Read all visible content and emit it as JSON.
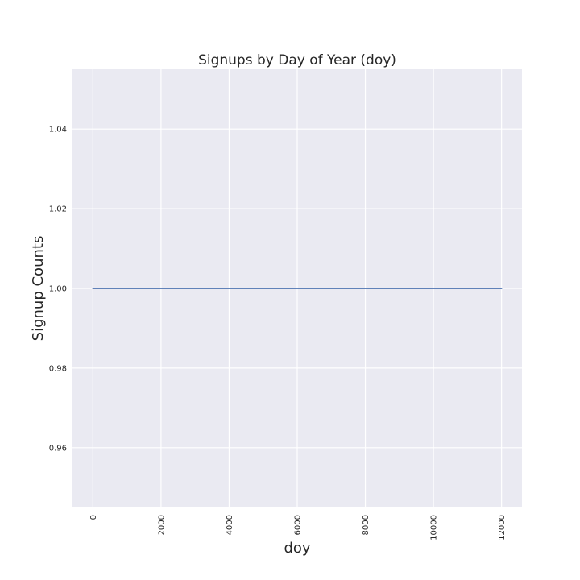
{
  "chart_data": {
    "type": "line",
    "title": "Signups by Day of Year (doy)",
    "xlabel": "doy",
    "ylabel": "Signup Counts",
    "xlim": [
      -600,
      12600
    ],
    "ylim": [
      0.945,
      1.055
    ],
    "xticks": [
      0,
      2000,
      4000,
      6000,
      8000,
      10000,
      12000
    ],
    "xtick_labels": [
      "0",
      "2000",
      "4000",
      "6000",
      "8000",
      "10000",
      "12000"
    ],
    "yticks": [
      0.96,
      0.98,
      1.0,
      1.02,
      1.04
    ],
    "ytick_labels": [
      "0.96",
      "0.98",
      "1.00",
      "1.02",
      "1.04"
    ],
    "series": [
      {
        "x": [
          0,
          12000
        ],
        "y": [
          1.0,
          1.0
        ],
        "color": "#4c72b0"
      }
    ],
    "grid": true,
    "background_color": "#eaeaf2",
    "grid_color": "#ffffff"
  }
}
